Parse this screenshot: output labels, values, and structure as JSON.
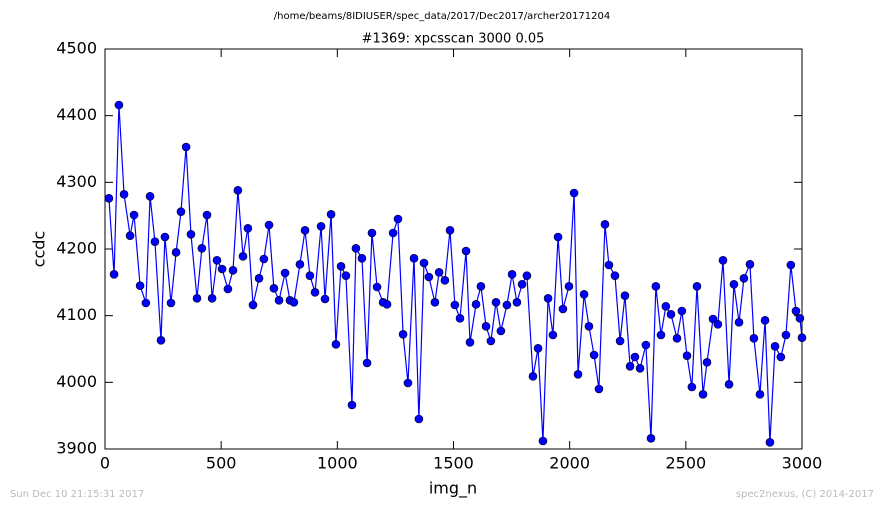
{
  "chart_data": {
    "type": "line",
    "header": "/home/beams/8IDIUSER/spec_data/2017/Dec2017/archer20171204",
    "title": "#1369: xpcsscan 3000 0.05",
    "x_label": "img_n",
    "y_label": "ccdc",
    "footer_left": "Sun Dec 10 21:15:31 2017",
    "footer_right": "spec2nexus, (C) 2014-2017",
    "color": "#0000ff",
    "marker": true,
    "x": [
      17,
      39,
      60,
      82,
      108,
      125,
      151,
      176,
      194,
      215,
      241,
      258,
      284,
      306,
      327,
      349,
      370,
      396,
      417,
      439,
      461,
      482,
      504,
      529,
      551,
      572,
      594,
      615,
      637,
      663,
      684,
      706,
      727,
      749,
      775,
      796,
      813,
      839,
      861,
      882,
      904,
      930,
      947,
      973,
      994,
      1016,
      1037,
      1063,
      1080,
      1106,
      1128,
      1149,
      1171,
      1197,
      1214,
      1240,
      1261,
      1283,
      1304,
      1330,
      1351,
      1373,
      1394,
      1420,
      1438,
      1463,
      1485,
      1506,
      1528,
      1554,
      1571,
      1597,
      1618,
      1640,
      1661,
      1683,
      1704,
      1730,
      1752,
      1773,
      1795,
      1816,
      1842,
      1864,
      1885,
      1907,
      1928,
      1950,
      1971,
      1997,
      2019,
      2036,
      2062,
      2083,
      2105,
      2126,
      2152,
      2169,
      2195,
      2217,
      2238,
      2260,
      2281,
      2303,
      2328,
      2350,
      2371,
      2393,
      2414,
      2436,
      2462,
      2483,
      2505,
      2526,
      2548,
      2574,
      2591,
      2617,
      2638,
      2660,
      2686,
      2707,
      2729,
      2750,
      2776,
      2793,
      2819,
      2841,
      2862,
      2884,
      2909,
      2931,
      2952,
      2974,
      2991,
      3000
    ],
    "values": [
      4276,
      4162,
      4416,
      4282,
      4220,
      4251,
      4145,
      4119,
      4279,
      4211,
      4063,
      4218,
      4119,
      4195,
      4256,
      4353,
      4222,
      4126,
      4201,
      4251,
      4126,
      4183,
      4170,
      4140,
      4168,
      4288,
      4189,
      4231,
      4116,
      4156,
      4185,
      4236,
      4141,
      4123,
      4164,
      4123,
      4120,
      4177,
      4228,
      4160,
      4135,
      4234,
      4125,
      4252,
      4057,
      4174,
      4160,
      3966,
      4201,
      4186,
      4029,
      4224,
      4143,
      4120,
      4117,
      4224,
      4245,
      4072,
      3999,
      4186,
      3945,
      4179,
      4158,
      4120,
      4165,
      4153,
      4228,
      4116,
      4096,
      4197,
      4060,
      4117,
      4144,
      4084,
      4062,
      4120,
      4077,
      4116,
      4162,
      4120,
      4147,
      4160,
      4009,
      4051,
      3912,
      4126,
      4071,
      4218,
      4110,
      4144,
      4284,
      4012,
      4132,
      4084,
      4041,
      3990,
      4237,
      4176,
      4160,
      4062,
      4130,
      4024,
      4038,
      4021,
      4056,
      3916,
      4144,
      4071,
      4114,
      4102,
      4066,
      4107,
      4040,
      3993,
      4144,
      3982,
      4030,
      4095,
      4087,
      4183,
      3997,
      4147,
      4090,
      4156,
      4177,
      4066,
      3982,
      4093,
      3910,
      4054,
      4038,
      4071,
      4176,
      4107,
      4096,
      4067
    ],
    "xlim": [
      0,
      3000
    ],
    "xticks": [
      0,
      500,
      1000,
      1500,
      2000,
      2500,
      3000
    ],
    "ylim": [
      3900,
      4500
    ],
    "yticks": [
      3900,
      4000,
      4100,
      4200,
      4300,
      4400,
      4500
    ]
  }
}
